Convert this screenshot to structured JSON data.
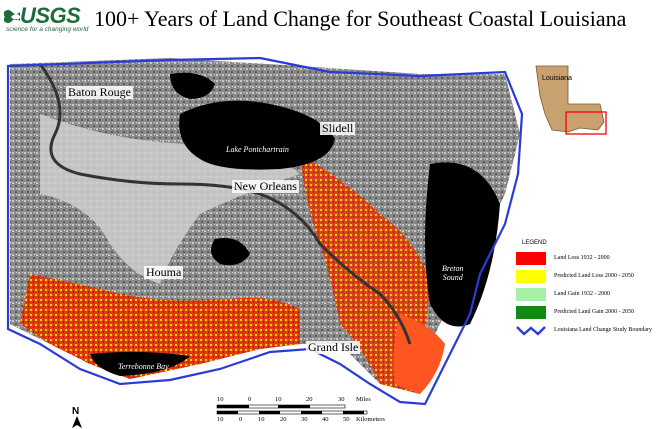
{
  "header": {
    "logo_text": "USGS",
    "logo_tagline": "science for a changing world",
    "title": "100+ Years of Land Change for Southeast Coastal Louisiana"
  },
  "map": {
    "cities": {
      "baton_rouge": "Baton Rouge",
      "slidell": "Slidell",
      "new_orleans": "New Orleans",
      "houma": "Houma",
      "grand_isle": "Grand Isle"
    },
    "water": {
      "lake_pontchartrain": "Lake Pontchartrain",
      "breton_sound": "Breton\nSound",
      "terrebonne_bay": "Terrebonne Bay"
    },
    "inset_label": "Louisiana",
    "north_label": "N"
  },
  "legend": {
    "title": "LEGEND",
    "items": [
      {
        "label": "Land Loss 1932 - 2000",
        "color": "#ff0000"
      },
      {
        "label": "Predicted Land Loss 2000 - 2050",
        "color": "#ffff00"
      },
      {
        "label": "Land Gain 1932 - 2000",
        "color": "#a8f0a8"
      },
      {
        "label": "Predicted Land Gain 2000 - 2050",
        "color": "#118a11"
      },
      {
        "label": "Louisiana Land Change Study Boundary",
        "color": "#2a3bd8"
      }
    ]
  },
  "scale": {
    "miles_ticks": [
      "10",
      "0",
      "10",
      "20",
      "30"
    ],
    "miles_unit": "Miles",
    "km_ticks": [
      "10",
      "0",
      "10",
      "20",
      "30",
      "40",
      "50"
    ],
    "km_unit": "Kilometers"
  }
}
